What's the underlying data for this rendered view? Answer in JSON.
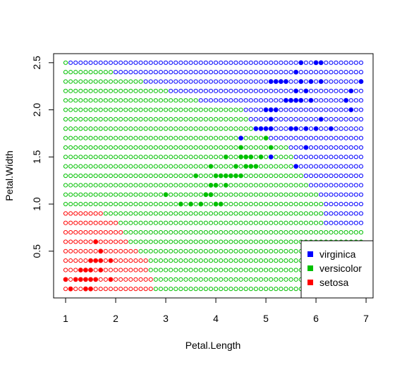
{
  "chart_data": {
    "type": "scatter",
    "title": "",
    "xlabel": "Petal.Length",
    "ylabel": "Petal.Width",
    "xlim": [
      0.76,
      7.14
    ],
    "ylim": [
      0.004,
      2.596
    ],
    "x_ticks": [
      1,
      2,
      3,
      4,
      5,
      6,
      7
    ],
    "y_ticks": [
      0.5,
      1.0,
      1.5,
      2.0,
      2.5
    ],
    "y_tick_labels": [
      "0.5",
      "1.0",
      "1.5",
      "2.0",
      "2.5"
    ],
    "grid": false,
    "legend_position": "bottom-right",
    "colors": {
      "setosa": "#ff0000",
      "versicolor": "#00c000",
      "virginica": "#0000ff"
    },
    "background_grid": {
      "x_start": 1.0,
      "x_step": 0.1,
      "x_count": 60,
      "y_start": 0.1,
      "y_step": 0.1,
      "y_count": 25,
      "style": "open-circle",
      "regions": [
        {
          "name": "setosa",
          "x_max_by_row": [
            2.7,
            2.7,
            2.6,
            2.6,
            2.4,
            2.2,
            2.1,
            2.0,
            1.7,
            0.0,
            0.0,
            0.0,
            0.0,
            0.0,
            0.0,
            0.0,
            0.0,
            0.0,
            0.0,
            0.0,
            0.0,
            0.0,
            0.0,
            0.0,
            0.0
          ]
        },
        {
          "name": "versicolor",
          "x_max_by_row": [
            7.1,
            7.1,
            7.1,
            7.1,
            7.1,
            7.1,
            7.1,
            6.1,
            6.1,
            6.1,
            6.0,
            5.8,
            5.7,
            5.6,
            5.5,
            5.4,
            5.0,
            4.8,
            4.6,
            4.5,
            3.6,
            3.0,
            2.5,
            1.9,
            1.0
          ]
        },
        {
          "name": "virginica",
          "x_max_by_row": [
            7.1,
            7.1,
            7.1,
            7.1,
            7.1,
            7.1,
            7.1,
            7.1,
            7.1,
            7.1,
            7.1,
            7.1,
            7.1,
            7.1,
            7.1,
            7.1,
            7.1,
            7.1,
            7.1,
            7.1,
            7.1,
            7.1,
            7.1,
            7.1,
            7.1
          ]
        }
      ]
    },
    "series": [
      {
        "name": "setosa",
        "points": [
          [
            1.0,
            0.2
          ],
          [
            1.1,
            0.1
          ],
          [
            1.2,
            0.2
          ],
          [
            1.3,
            0.2
          ],
          [
            1.3,
            0.3
          ],
          [
            1.4,
            0.1
          ],
          [
            1.4,
            0.2
          ],
          [
            1.4,
            0.3
          ],
          [
            1.5,
            0.1
          ],
          [
            1.5,
            0.2
          ],
          [
            1.5,
            0.3
          ],
          [
            1.5,
            0.4
          ],
          [
            1.6,
            0.2
          ],
          [
            1.6,
            0.4
          ],
          [
            1.6,
            0.6
          ],
          [
            1.7,
            0.3
          ],
          [
            1.7,
            0.4
          ],
          [
            1.7,
            0.5
          ],
          [
            1.9,
            0.2
          ],
          [
            1.9,
            0.4
          ]
        ]
      },
      {
        "name": "versicolor",
        "points": [
          [
            3.0,
            1.1
          ],
          [
            3.3,
            1.0
          ],
          [
            3.5,
            1.0
          ],
          [
            3.6,
            1.3
          ],
          [
            3.7,
            1.0
          ],
          [
            3.8,
            1.1
          ],
          [
            3.9,
            1.1
          ],
          [
            3.9,
            1.2
          ],
          [
            3.9,
            1.4
          ],
          [
            4.0,
            1.0
          ],
          [
            4.0,
            1.2
          ],
          [
            4.0,
            1.3
          ],
          [
            4.1,
            1.0
          ],
          [
            4.1,
            1.3
          ],
          [
            4.2,
            1.2
          ],
          [
            4.2,
            1.3
          ],
          [
            4.2,
            1.5
          ],
          [
            4.3,
            1.3
          ],
          [
            4.4,
            1.3
          ],
          [
            4.4,
            1.4
          ],
          [
            4.5,
            1.3
          ],
          [
            4.5,
            1.5
          ],
          [
            4.5,
            1.6
          ],
          [
            4.6,
            1.4
          ],
          [
            4.6,
            1.5
          ],
          [
            4.7,
            1.4
          ],
          [
            4.7,
            1.5
          ],
          [
            4.8,
            1.4
          ],
          [
            4.9,
            1.5
          ],
          [
            5.0,
            1.7
          ],
          [
            5.1,
            1.6
          ]
        ]
      },
      {
        "name": "virginica",
        "points": [
          [
            4.5,
            1.7
          ],
          [
            4.8,
            1.8
          ],
          [
            4.9,
            1.8
          ],
          [
            5.0,
            1.8
          ],
          [
            5.0,
            2.0
          ],
          [
            5.1,
            1.5
          ],
          [
            5.1,
            1.8
          ],
          [
            5.1,
            1.9
          ],
          [
            5.1,
            2.0
          ],
          [
            5.1,
            2.3
          ],
          [
            5.2,
            2.0
          ],
          [
            5.2,
            2.3
          ],
          [
            5.3,
            2.3
          ],
          [
            5.4,
            2.1
          ],
          [
            5.4,
            2.3
          ],
          [
            5.5,
            1.8
          ],
          [
            5.5,
            2.1
          ],
          [
            5.6,
            1.4
          ],
          [
            5.6,
            1.8
          ],
          [
            5.6,
            2.1
          ],
          [
            5.6,
            2.2
          ],
          [
            5.6,
            2.4
          ],
          [
            5.7,
            2.1
          ],
          [
            5.7,
            2.3
          ],
          [
            5.7,
            2.5
          ],
          [
            5.8,
            1.6
          ],
          [
            5.8,
            1.8
          ],
          [
            5.8,
            2.2
          ],
          [
            5.9,
            2.1
          ],
          [
            5.9,
            2.3
          ],
          [
            6.0,
            1.8
          ],
          [
            6.0,
            2.5
          ],
          [
            6.1,
            1.9
          ],
          [
            6.1,
            2.3
          ],
          [
            6.1,
            2.5
          ],
          [
            6.3,
            1.8
          ],
          [
            6.6,
            2.1
          ],
          [
            6.7,
            2.0
          ],
          [
            6.7,
            2.2
          ],
          [
            6.9,
            2.3
          ]
        ]
      }
    ],
    "legend": [
      {
        "key": "virginica",
        "label": "virginica"
      },
      {
        "key": "versicolor",
        "label": "versicolor"
      },
      {
        "key": "setosa",
        "label": "setosa"
      }
    ]
  }
}
